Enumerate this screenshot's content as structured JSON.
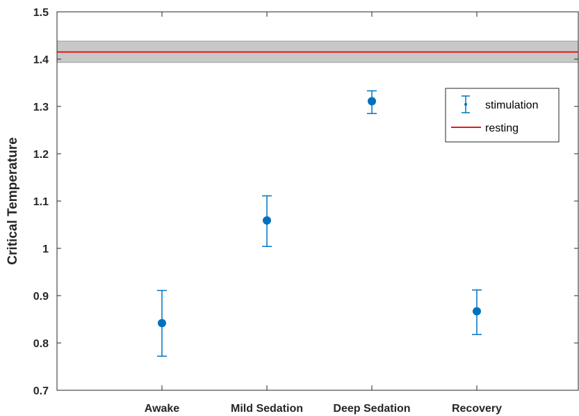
{
  "chart_data": {
    "type": "scatter",
    "title": "",
    "xlabel": "",
    "ylabel": "Critical Temperature",
    "categories": [
      "Awake",
      "Mild Sedation",
      "Deep Sedation",
      "Recovery"
    ],
    "ylim": [
      0.7,
      1.5
    ],
    "yticks": [
      "0.7",
      "0.8",
      "0.9",
      "1",
      "1.1",
      "1.2",
      "1.3",
      "1.4",
      "1.5"
    ],
    "grid": false,
    "legend_position": "top-right",
    "series": [
      {
        "name": "stimulation",
        "kind": "errorbar",
        "color": "#0072BD",
        "values": [
          0.842,
          1.059,
          1.311,
          0.867
        ],
        "lower": [
          0.772,
          1.004,
          1.285,
          0.818
        ],
        "upper": [
          0.911,
          1.111,
          1.333,
          0.912
        ]
      },
      {
        "name": "resting",
        "kind": "hline",
        "color": "#E41A1C",
        "value": 1.415,
        "band": [
          1.393,
          1.438
        ],
        "band_color": "#C8C8C8"
      }
    ]
  }
}
